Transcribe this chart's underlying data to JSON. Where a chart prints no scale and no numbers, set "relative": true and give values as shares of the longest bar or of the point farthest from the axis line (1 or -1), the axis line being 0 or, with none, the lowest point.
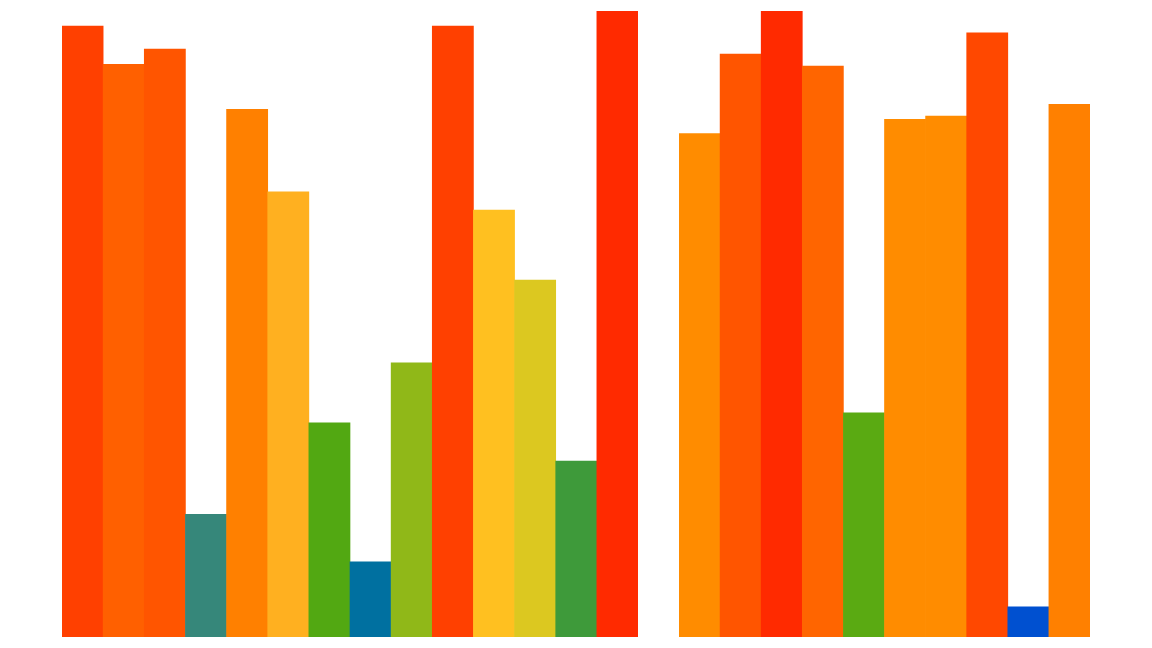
{
  "chart_data": [
    {
      "type": "bar",
      "relative": true,
      "categories": [
        null,
        null,
        null,
        null,
        null,
        null,
        null,
        null,
        null,
        null,
        null,
        null,
        null,
        null
      ],
      "values": [
        0.976,
        0.915,
        0.939,
        0.196,
        0.843,
        0.711,
        0.342,
        0.12,
        0.438,
        0.976,
        0.682,
        0.57,
        0.281,
        1
      ],
      "colors": [
        "#ff4000",
        "#ff6000",
        "#ff5500",
        "#36877a",
        "#ff8000",
        "#ffb020",
        "#52a812",
        "#0070a0",
        "#90b818",
        "#ff4000",
        "#ffc020",
        "#dcc820",
        "#3e9a3a",
        "#ff2a00"
      ]
    },
    {
      "type": "bar",
      "relative": true,
      "categories": [
        null,
        null,
        null,
        null,
        null,
        null,
        null,
        null,
        null,
        null
      ],
      "values": [
        0.804,
        0.931,
        1,
        0.912,
        0.358,
        0.827,
        0.832,
        0.965,
        0.048,
        0.851
      ],
      "colors": [
        "#ff8c00",
        "#ff5500",
        "#ff2a00",
        "#ff6500",
        "#5aaa12",
        "#ff8c00",
        "#ff8c00",
        "#ff4800",
        "#0050d0",
        "#ff8000"
      ]
    }
  ]
}
